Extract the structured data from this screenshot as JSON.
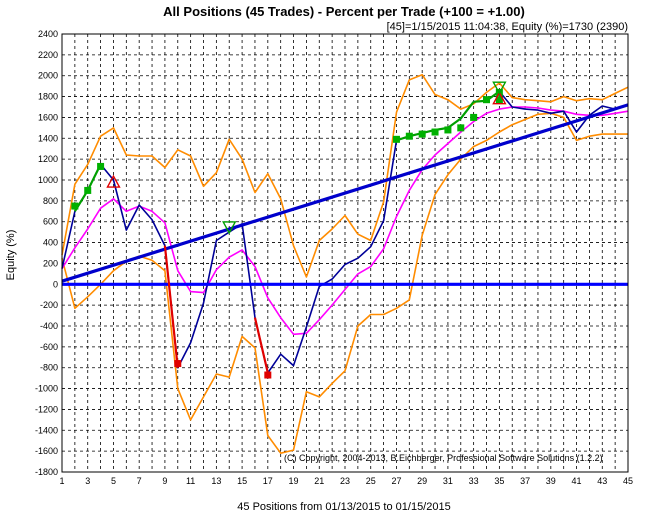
{
  "chart_data": {
    "type": "line",
    "title": "All Positions (45 Trades) - Percent per Trade (+100 = +1.00)",
    "subtitle": "[45]=1/15/2015 11:04:38,  Equity (%)=1730 (2390)",
    "xlabel": "45 Positions from 01/13/2015 to 01/15/2015",
    "ylabel": "Equity (%)",
    "copyright": "(C) Copyright, 2004-2013, B.Eichberger, Professional Software Solutions (1.2.2)",
    "xlim": [
      1,
      45
    ],
    "ylim": [
      -1800,
      2400
    ],
    "grid": true,
    "x_ticks": [
      1,
      3,
      5,
      7,
      9,
      11,
      13,
      15,
      17,
      19,
      21,
      23,
      25,
      27,
      29,
      31,
      33,
      35,
      37,
      39,
      41,
      43,
      45
    ],
    "x_tick_labels": [
      "1",
      "3",
      "5",
      "7",
      "9",
      "11",
      "13",
      "15",
      "17",
      "19",
      "21",
      "23",
      "25",
      "27",
      "29",
      "31",
      "33",
      "35",
      "37",
      "39",
      "41",
      "43",
      "45"
    ],
    "y_ticks": [
      -1800,
      -1600,
      -1400,
      -1200,
      -1000,
      -800,
      -600,
      -400,
      -200,
      0,
      200,
      400,
      600,
      800,
      1000,
      1200,
      1400,
      1600,
      1800,
      2000,
      2200,
      2400
    ],
    "y_tick_labels": [
      "-1800",
      "-1600",
      "-1400",
      "-1200",
      "-1000",
      "-800",
      "-600",
      "-400",
      "-200",
      "0",
      "200",
      "400",
      "600",
      "800",
      "1000",
      "1200",
      "1400",
      "1600",
      "1800",
      "2000",
      "2200",
      "2400"
    ],
    "series": [
      {
        "color": "#ff8c00",
        "points": [
          [
            1,
            280
          ],
          [
            2,
            960
          ],
          [
            3,
            1150
          ],
          [
            4,
            1420
          ],
          [
            5,
            1500
          ],
          [
            6,
            1240
          ],
          [
            7,
            1230
          ],
          [
            8,
            1230
          ],
          [
            9,
            1120
          ],
          [
            10,
            1290
          ],
          [
            11,
            1230
          ],
          [
            12,
            940
          ],
          [
            13,
            1070
          ],
          [
            14,
            1390
          ],
          [
            15,
            1200
          ],
          [
            16,
            880
          ],
          [
            17,
            1060
          ],
          [
            18,
            820
          ],
          [
            19,
            370
          ],
          [
            20,
            70
          ],
          [
            21,
            420
          ],
          [
            22,
            530
          ],
          [
            23,
            660
          ],
          [
            24,
            480
          ],
          [
            25,
            420
          ],
          [
            26,
            790
          ],
          [
            27,
            1650
          ],
          [
            28,
            1960
          ],
          [
            29,
            2010
          ],
          [
            30,
            1820
          ],
          [
            31,
            1770
          ],
          [
            32,
            1680
          ],
          [
            33,
            1730
          ],
          [
            34,
            1840
          ],
          [
            35,
            1930
          ],
          [
            36,
            1790
          ],
          [
            37,
            1770
          ],
          [
            38,
            1760
          ],
          [
            39,
            1750
          ],
          [
            40,
            1800
          ],
          [
            41,
            1760
          ],
          [
            42,
            1780
          ],
          [
            43,
            1770
          ],
          [
            44,
            1830
          ],
          [
            45,
            1890
          ]
        ]
      },
      {
        "color": "#ff8c00",
        "points": [
          [
            1,
            250
          ],
          [
            2,
            -230
          ],
          [
            3,
            -120
          ],
          [
            4,
            0
          ],
          [
            5,
            130
          ],
          [
            6,
            220
          ],
          [
            7,
            270
          ],
          [
            8,
            230
          ],
          [
            9,
            130
          ],
          [
            10,
            -1000
          ],
          [
            11,
            -1300
          ],
          [
            12,
            -1080
          ],
          [
            13,
            -860
          ],
          [
            14,
            -890
          ],
          [
            15,
            -500
          ],
          [
            16,
            -610
          ],
          [
            17,
            -1450
          ],
          [
            18,
            -1620
          ],
          [
            19,
            -1590
          ],
          [
            20,
            -1030
          ],
          [
            21,
            -1080
          ],
          [
            22,
            -950
          ],
          [
            23,
            -830
          ],
          [
            24,
            -400
          ],
          [
            25,
            -290
          ],
          [
            26,
            -290
          ],
          [
            27,
            -230
          ],
          [
            28,
            -150
          ],
          [
            29,
            470
          ],
          [
            30,
            860
          ],
          [
            31,
            1050
          ],
          [
            32,
            1200
          ],
          [
            33,
            1320
          ],
          [
            34,
            1380
          ],
          [
            35,
            1460
          ],
          [
            36,
            1530
          ],
          [
            37,
            1580
          ],
          [
            38,
            1630
          ],
          [
            39,
            1640
          ],
          [
            40,
            1600
          ],
          [
            41,
            1380
          ],
          [
            42,
            1420
          ],
          [
            43,
            1440
          ],
          [
            44,
            1440
          ],
          [
            45,
            1440
          ]
        ]
      },
      {
        "color": "#ff00ff",
        "points": [
          [
            1,
            150
          ],
          [
            2,
            350
          ],
          [
            3,
            530
          ],
          [
            4,
            730
          ],
          [
            5,
            820
          ],
          [
            6,
            700
          ],
          [
            7,
            750
          ],
          [
            8,
            700
          ],
          [
            9,
            590
          ],
          [
            10,
            130
          ],
          [
            11,
            -70
          ],
          [
            12,
            -80
          ],
          [
            13,
            140
          ],
          [
            14,
            260
          ],
          [
            15,
            330
          ],
          [
            16,
            170
          ],
          [
            17,
            -130
          ],
          [
            18,
            -320
          ],
          [
            19,
            -480
          ],
          [
            20,
            -470
          ],
          [
            21,
            -340
          ],
          [
            22,
            -200
          ],
          [
            23,
            -50
          ],
          [
            24,
            100
          ],
          [
            25,
            170
          ],
          [
            26,
            340
          ],
          [
            27,
            650
          ],
          [
            28,
            900
          ],
          [
            29,
            1100
          ],
          [
            30,
            1240
          ],
          [
            31,
            1350
          ],
          [
            32,
            1460
          ],
          [
            33,
            1560
          ],
          [
            34,
            1640
          ],
          [
            35,
            1680
          ],
          [
            36,
            1700
          ],
          [
            37,
            1700
          ],
          [
            38,
            1690
          ],
          [
            39,
            1670
          ],
          [
            40,
            1660
          ],
          [
            41,
            1630
          ],
          [
            42,
            1620
          ],
          [
            43,
            1620
          ],
          [
            44,
            1640
          ],
          [
            45,
            1660
          ]
        ]
      },
      {
        "color": "#000099",
        "points": [
          [
            1,
            150
          ],
          [
            2,
            700
          ],
          [
            3,
            900
          ],
          [
            4,
            1150
          ],
          [
            5,
            1000
          ],
          [
            6,
            520
          ],
          [
            7,
            760
          ],
          [
            8,
            620
          ],
          [
            9,
            370
          ],
          [
            10,
            -800
          ],
          [
            11,
            -560
          ],
          [
            12,
            -180
          ],
          [
            13,
            420
          ],
          [
            14,
            500
          ],
          [
            15,
            580
          ],
          [
            16,
            -320
          ],
          [
            17,
            -850
          ],
          [
            18,
            -670
          ],
          [
            19,
            -780
          ],
          [
            20,
            -410
          ],
          [
            21,
            -20
          ],
          [
            22,
            50
          ],
          [
            23,
            190
          ],
          [
            24,
            250
          ],
          [
            25,
            360
          ],
          [
            26,
            610
          ],
          [
            27,
            1380
          ],
          [
            28,
            1420
          ],
          [
            29,
            1450
          ],
          [
            30,
            1480
          ],
          [
            31,
            1500
          ],
          [
            32,
            1590
          ],
          [
            33,
            1750
          ],
          [
            34,
            1760
          ],
          [
            35,
            1850
          ],
          [
            36,
            1700
          ],
          [
            37,
            1680
          ],
          [
            38,
            1670
          ],
          [
            39,
            1640
          ],
          [
            40,
            1660
          ],
          [
            41,
            1460
          ],
          [
            42,
            1620
          ],
          [
            43,
            1710
          ],
          [
            44,
            1680
          ],
          [
            45,
            1720
          ]
        ]
      },
      {
        "color": "#0000cc",
        "points": [
          [
            1,
            30
          ],
          [
            45,
            1720
          ]
        ]
      },
      {
        "color": "#0000ff",
        "points": [
          [
            1,
            0
          ],
          [
            45,
            0
          ]
        ]
      }
    ],
    "segments_green": [
      [
        2,
        3
      ],
      [
        3,
        4
      ],
      [
        27,
        28
      ],
      [
        28,
        29
      ],
      [
        29,
        30
      ],
      [
        30,
        31
      ],
      [
        31,
        32
      ],
      [
        32,
        33
      ],
      [
        33,
        34
      ],
      [
        34,
        35
      ]
    ],
    "segments_red": [
      [
        9,
        10
      ],
      [
        16,
        17
      ]
    ],
    "markers_green": [
      [
        2,
        750
      ],
      [
        3,
        900
      ],
      [
        4,
        1130
      ],
      [
        27,
        1390
      ],
      [
        28,
        1420
      ],
      [
        29,
        1440
      ],
      [
        30,
        1460
      ],
      [
        31,
        1480
      ],
      [
        32,
        1500
      ],
      [
        33,
        1600
      ],
      [
        34,
        1770
      ],
      [
        35,
        1770
      ],
      [
        35,
        1840
      ]
    ],
    "markers_red": [
      [
        10,
        -760
      ],
      [
        17,
        -870
      ]
    ],
    "triangles_up_red": [
      [
        5,
        980
      ],
      [
        35,
        1780
      ]
    ],
    "triangles_down_green": [
      [
        14,
        550
      ],
      [
        35,
        1890
      ]
    ]
  }
}
